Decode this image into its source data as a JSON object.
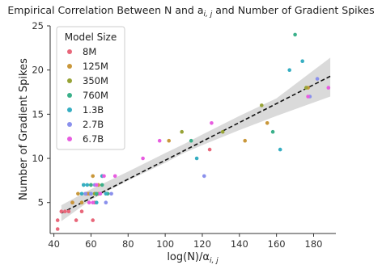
{
  "chart_data": {
    "type": "scatter",
    "title": "Empirical Correlation Between N and a",
    "title_sub": "i, j",
    "title_tail": " and Number of Gradient Spikes",
    "xlabel_main": "log(N)/α",
    "xlabel_sub": "i, j",
    "ylabel": "Number of Gradient Spikes",
    "xlim": [
      38,
      192
    ],
    "ylim": [
      1.5,
      25
    ],
    "x_ticks": [
      40,
      60,
      80,
      100,
      120,
      140,
      160,
      180
    ],
    "y_ticks": [
      5,
      10,
      15,
      20,
      25
    ],
    "x_tick_labels": [
      "40",
      "60",
      "80",
      "100",
      "120",
      "140",
      "160",
      "180"
    ],
    "y_tick_labels": [
      "5",
      "10",
      "15",
      "20",
      "25"
    ],
    "legend": {
      "title": "Model Size",
      "placement": "top-left"
    },
    "series": [
      {
        "name": "8M",
        "color": "#e8677a",
        "points": [
          [
            42,
            2
          ],
          [
            42,
            3
          ],
          [
            44,
            4
          ],
          [
            46,
            4
          ],
          [
            48,
            4
          ],
          [
            50,
            5
          ],
          [
            52,
            3
          ],
          [
            55,
            4
          ],
          [
            58,
            6
          ],
          [
            61,
            3
          ],
          [
            62,
            5
          ],
          [
            64,
            6
          ],
          [
            66,
            8
          ],
          [
            124,
            11
          ]
        ]
      },
      {
        "name": "125M",
        "color": "#c9973a",
        "points": [
          [
            50,
            5
          ],
          [
            53,
            6
          ],
          [
            55,
            5
          ],
          [
            59,
            6
          ],
          [
            61,
            8
          ],
          [
            64,
            7
          ],
          [
            102,
            12
          ],
          [
            143,
            12
          ],
          [
            155,
            14
          ],
          [
            177,
            18
          ]
        ]
      },
      {
        "name": "350M",
        "color": "#97a336",
        "points": [
          [
            57,
            6
          ],
          [
            60,
            7
          ],
          [
            62,
            6
          ],
          [
            109,
            13
          ],
          [
            131,
            13
          ],
          [
            152,
            16
          ],
          [
            176,
            18
          ]
        ]
      },
      {
        "name": "760M",
        "color": "#3ab08a",
        "points": [
          [
            56,
            7
          ],
          [
            60,
            7
          ],
          [
            63,
            6
          ],
          [
            66,
            7
          ],
          [
            69,
            6
          ],
          [
            114,
            12
          ],
          [
            158,
            13
          ],
          [
            170,
            24
          ]
        ]
      },
      {
        "name": "1.3B",
        "color": "#36aec2",
        "points": [
          [
            55,
            6
          ],
          [
            56,
            7
          ],
          [
            58,
            7
          ],
          [
            60,
            6
          ],
          [
            63,
            5
          ],
          [
            66,
            8
          ],
          [
            68,
            6
          ],
          [
            117,
            10
          ],
          [
            162,
            11
          ],
          [
            167,
            20
          ],
          [
            174,
            21
          ]
        ]
      },
      {
        "name": "2.7B",
        "color": "#8a90ec",
        "points": [
          [
            57,
            6
          ],
          [
            60,
            6
          ],
          [
            62,
            7
          ],
          [
            65,
            6
          ],
          [
            68,
            5
          ],
          [
            71,
            6
          ],
          [
            121,
            8
          ],
          [
            178,
            17
          ],
          [
            182,
            19
          ]
        ]
      },
      {
        "name": "6.7B",
        "color": "#e75ce0",
        "points": [
          [
            59,
            5
          ],
          [
            61,
            5
          ],
          [
            63,
            7
          ],
          [
            65,
            6
          ],
          [
            67,
            8
          ],
          [
            73,
            8
          ],
          [
            88,
            10
          ],
          [
            97,
            12
          ],
          [
            125,
            14
          ],
          [
            177,
            17
          ],
          [
            188,
            18
          ]
        ]
      }
    ],
    "trend_line": {
      "style": "dashed",
      "color": "#111111",
      "x": [
        44,
        189
      ],
      "y": [
        3.8,
        19.3
      ]
    },
    "confidence_band": {
      "color": "#d4d4d4",
      "x": [
        44,
        60,
        80,
        100,
        110,
        120,
        140,
        160,
        189
      ],
      "lower": [
        2.9,
        5.3,
        7.5,
        9.5,
        10.6,
        11.5,
        13.2,
        14.8,
        17.0
      ],
      "upper": [
        4.7,
        6.5,
        8.5,
        10.6,
        11.6,
        12.7,
        14.8,
        16.8,
        21.4
      ]
    },
    "grid": false
  }
}
